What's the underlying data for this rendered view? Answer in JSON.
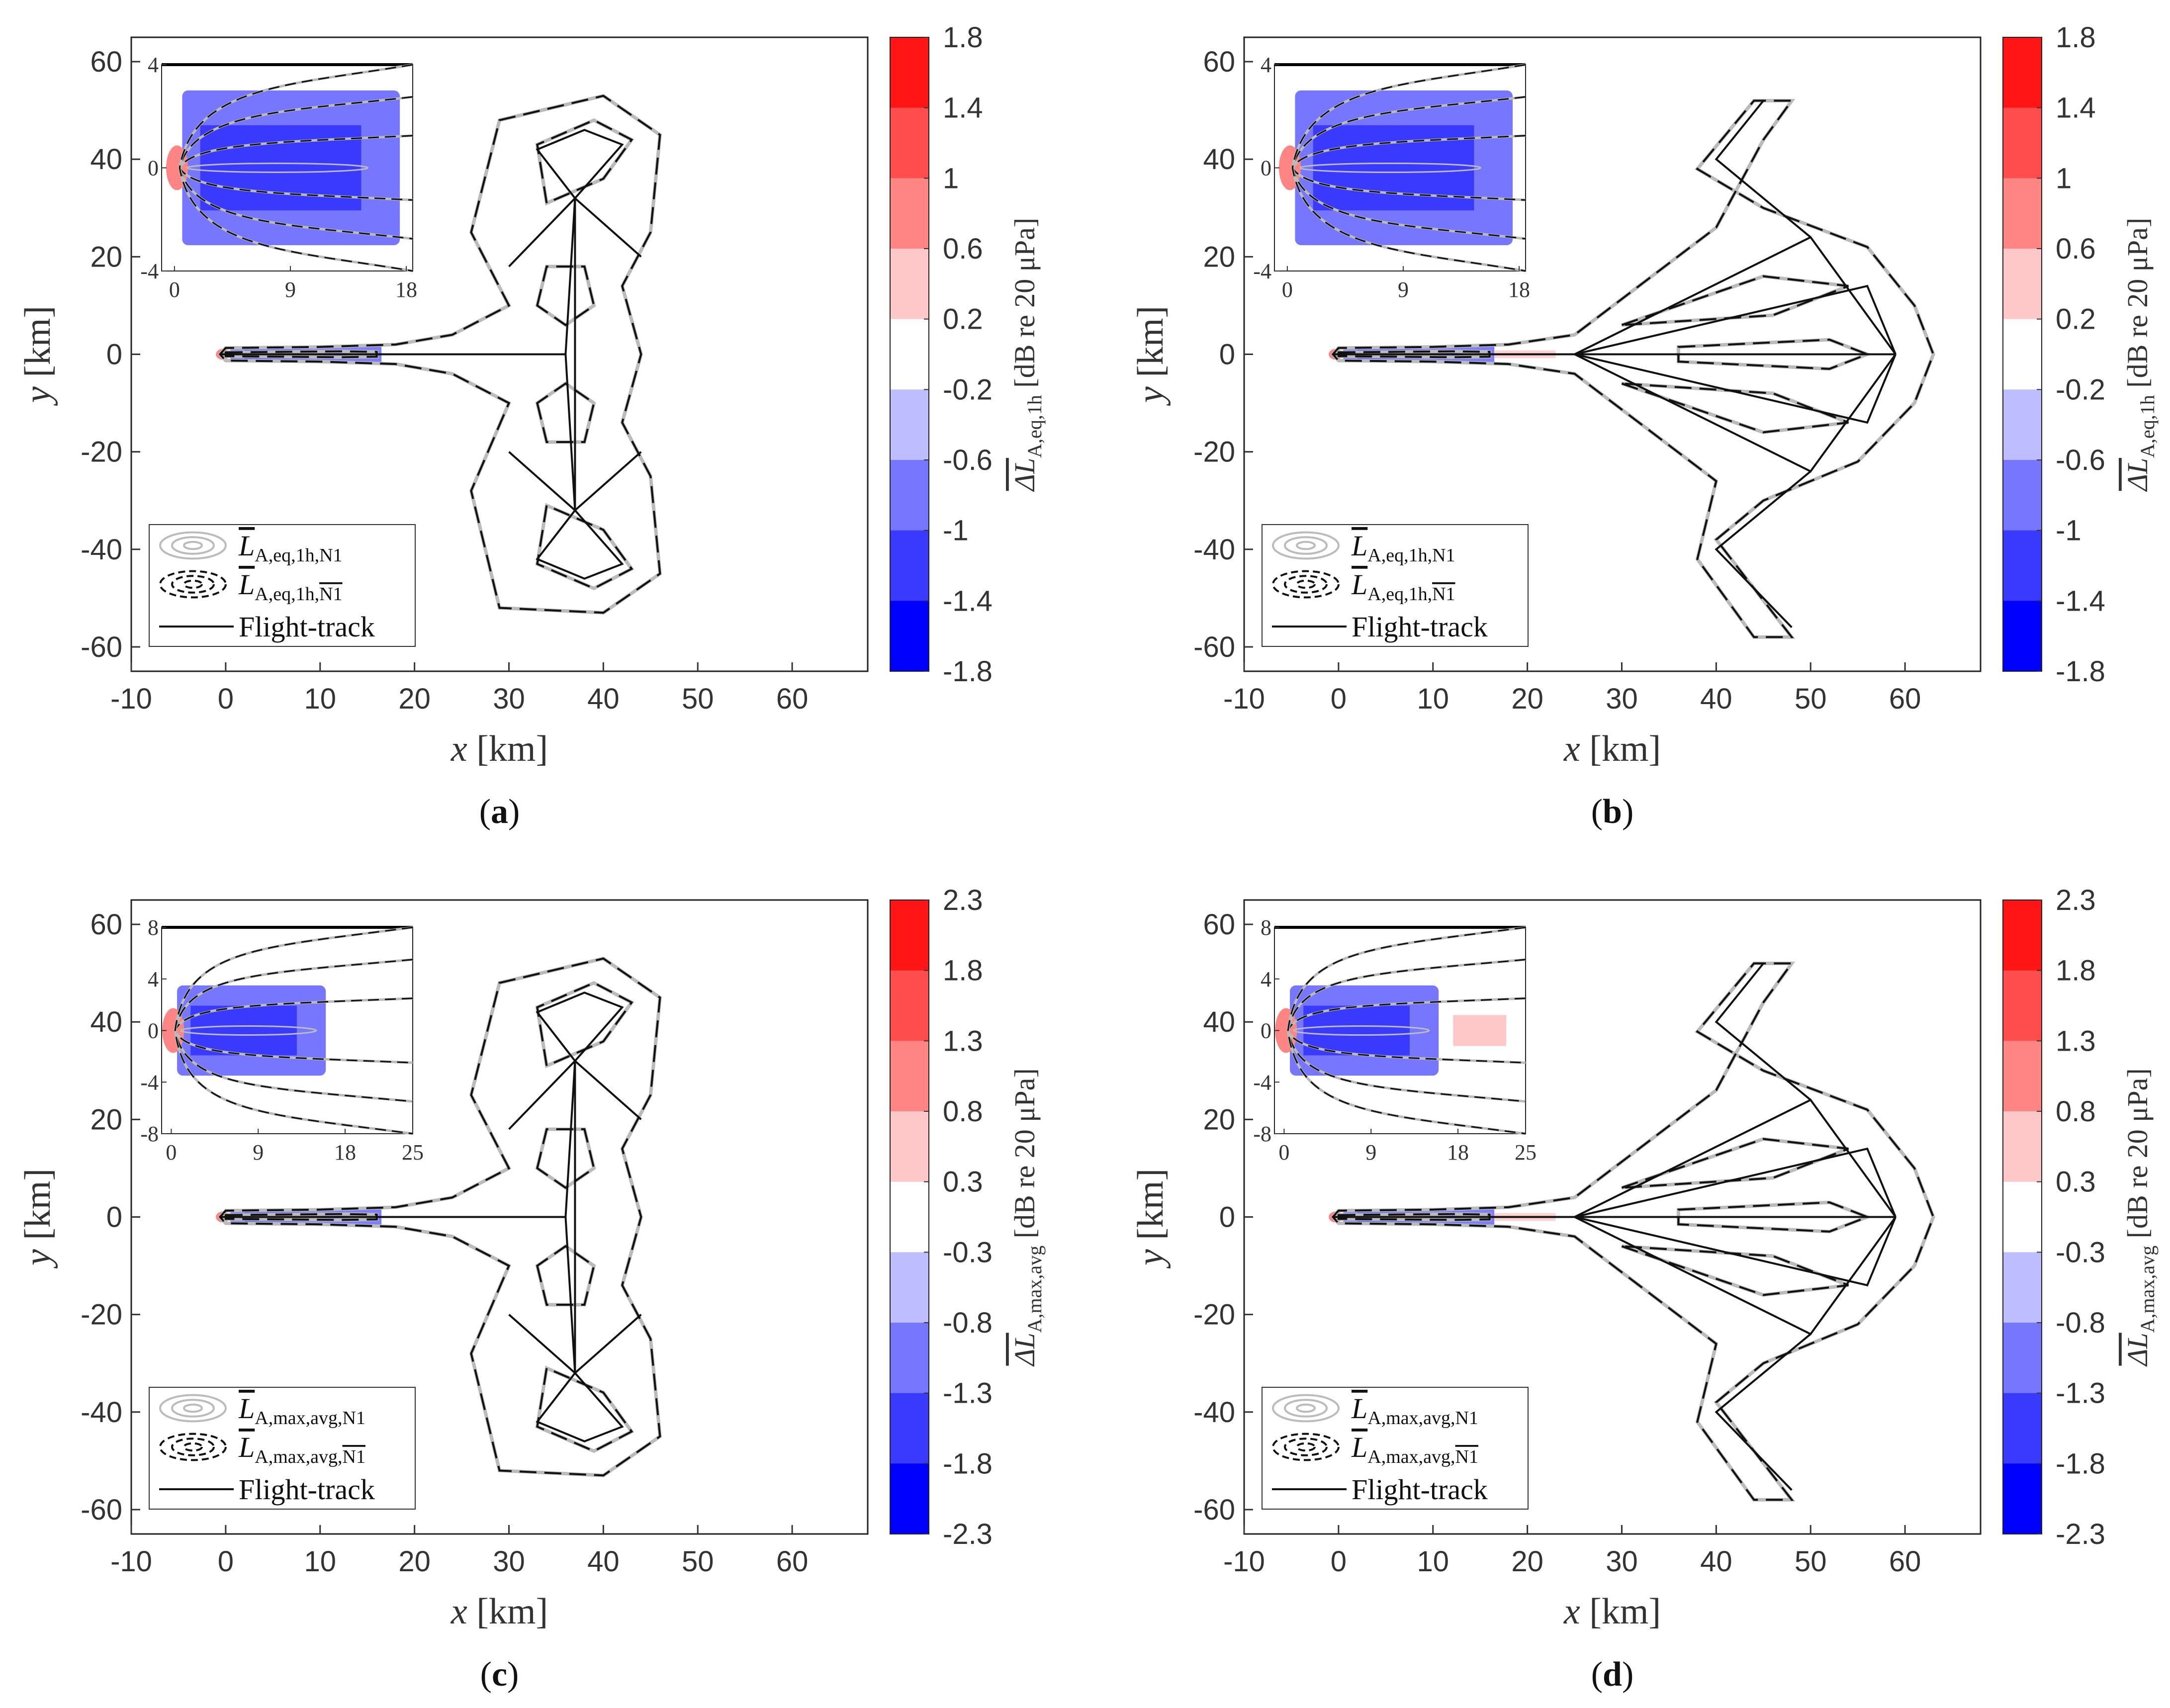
{
  "colors": {
    "axis": "#333333",
    "contour_n1": "#bbbbbb",
    "contour_nbar": "#111111",
    "track": "#111111",
    "frame": "#222222",
    "bins": [
      "#0000ff",
      "#3a3aff",
      "#7676ff",
      "#bdbdff",
      "#ffffff",
      "#ffc8c8",
      "#ff8484",
      "#ff4c4c",
      "#ff1515"
    ]
  },
  "chart_data": [
    {
      "type": "heatmap",
      "panel": "a",
      "caption_letter": "a",
      "xlabel_var": "x",
      "xlabel_unit": " [km]",
      "ylabel_var": "y",
      "ylabel_unit": " [km]",
      "xlim": [
        -10,
        68
      ],
      "ylim": [
        -65,
        65
      ],
      "xticks": [
        -10,
        0,
        10,
        20,
        30,
        40,
        50,
        60
      ],
      "yticks": [
        -60,
        -40,
        -20,
        0,
        20,
        40,
        60
      ],
      "colorbar": {
        "levels": [
          1.8,
          1.4,
          1,
          0.6,
          0.2,
          -0.2,
          -0.6,
          -1,
          -1.4,
          -1.8
        ],
        "title_sub": "A,eq,1h",
        "title_unit": "[dB re 20 μPa]"
      },
      "inset": {
        "xticks": [
          0,
          9,
          18
        ],
        "yticks": [
          -4,
          0,
          4
        ],
        "xlim": [
          -1,
          18.5
        ],
        "ylim": [
          -4,
          4
        ]
      },
      "legend": [
        {
          "base": "L",
          "sub": "A,eq,1h,N1",
          "style": "n1"
        },
        {
          "base": "L",
          "sub": "A,eq,1h,",
          "sub_over": "N1",
          "style": "nbar"
        },
        {
          "label": "Flight-track",
          "style": "track"
        }
      ],
      "shape": "loops"
    },
    {
      "type": "heatmap",
      "panel": "b",
      "caption_letter": "b",
      "xlabel_var": "x",
      "xlabel_unit": " [km]",
      "ylabel_var": "y",
      "ylabel_unit": " [km]",
      "xlim": [
        -10,
        68
      ],
      "ylim": [
        -65,
        65
      ],
      "xticks": [
        -10,
        0,
        10,
        20,
        30,
        40,
        50,
        60
      ],
      "yticks": [
        -60,
        -40,
        -20,
        0,
        20,
        40,
        60
      ],
      "colorbar": {
        "levels": [
          1.8,
          1.4,
          1,
          0.6,
          0.2,
          -0.2,
          -0.6,
          -1,
          -1.4,
          -1.8
        ],
        "title_sub": "A,eq,1h",
        "title_unit": "[dB re 20 μPa]"
      },
      "inset": {
        "xticks": [
          0,
          9,
          18
        ],
        "yticks": [
          -4,
          0,
          4
        ],
        "xlim": [
          -1,
          18.5
        ],
        "ylim": [
          -4,
          4
        ]
      },
      "legend": [
        {
          "base": "L",
          "sub": "A,eq,1h,N1",
          "style": "n1"
        },
        {
          "base": "L",
          "sub": "A,eq,1h,",
          "sub_over": "N1",
          "style": "nbar"
        },
        {
          "label": "Flight-track",
          "style": "track"
        }
      ],
      "shape": "fan"
    },
    {
      "type": "heatmap",
      "panel": "c",
      "caption_letter": "c",
      "xlabel_var": "x",
      "xlabel_unit": " [km]",
      "ylabel_var": "y",
      "ylabel_unit": " [km]",
      "xlim": [
        -10,
        68
      ],
      "ylim": [
        -65,
        65
      ],
      "xticks": [
        -10,
        0,
        10,
        20,
        30,
        40,
        50,
        60
      ],
      "yticks": [
        -60,
        -40,
        -20,
        0,
        20,
        40,
        60
      ],
      "colorbar": {
        "levels": [
          2.3,
          1.8,
          1.3,
          0.8,
          0.3,
          -0.3,
          -0.8,
          -1.3,
          -1.8,
          -2.3
        ],
        "title_sub": "A,max,avg",
        "title_unit": "[dB re 20 μPa]"
      },
      "inset": {
        "xticks": [
          0,
          9,
          18,
          25
        ],
        "yticks": [
          -8,
          -4,
          0,
          4,
          8
        ],
        "xlim": [
          -1,
          25
        ],
        "ylim": [
          -8,
          8
        ]
      },
      "legend": [
        {
          "base": "L",
          "sub": "A,max,avg,N1",
          "style": "n1"
        },
        {
          "base": "L",
          "sub": "A,max,avg,",
          "sub_over": "N1",
          "style": "nbar"
        },
        {
          "label": "Flight-track",
          "style": "track"
        }
      ],
      "shape": "loops"
    },
    {
      "type": "heatmap",
      "panel": "d",
      "caption_letter": "d",
      "xlabel_var": "x",
      "xlabel_unit": " [km]",
      "ylabel_var": "y",
      "ylabel_unit": " [km]",
      "xlim": [
        -10,
        68
      ],
      "ylim": [
        -65,
        65
      ],
      "xticks": [
        -10,
        0,
        10,
        20,
        30,
        40,
        50,
        60
      ],
      "yticks": [
        -60,
        -40,
        -20,
        0,
        20,
        40,
        60
      ],
      "colorbar": {
        "levels": [
          2.3,
          1.8,
          1.3,
          0.8,
          0.3,
          -0.3,
          -0.8,
          -1.3,
          -1.8,
          -2.3
        ],
        "title_sub": "A,max,avg",
        "title_unit": "[dB re 20 μPa]"
      },
      "inset": {
        "xticks": [
          0,
          9,
          18,
          25
        ],
        "yticks": [
          -8,
          -4,
          0,
          4,
          8
        ],
        "xlim": [
          -1,
          25
        ],
        "ylim": [
          -8,
          8
        ]
      },
      "legend": [
        {
          "base": "L",
          "sub": "A,max,avg,N1",
          "style": "n1"
        },
        {
          "base": "L",
          "sub": "A,max,avg,",
          "sub_over": "N1",
          "style": "nbar"
        },
        {
          "label": "Flight-track",
          "style": "track"
        }
      ],
      "shape": "fan"
    }
  ]
}
